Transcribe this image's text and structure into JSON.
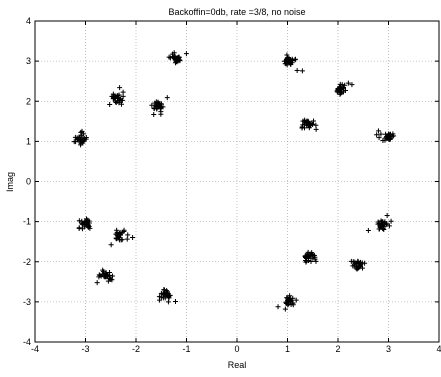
{
  "chart_data": {
    "type": "scatter",
    "title": "Backoffin=0db, rate =3/8, no noise",
    "xlabel": "Real",
    "ylabel": "Imag",
    "xlim": [
      -4,
      4
    ],
    "ylim": [
      -4,
      4
    ],
    "xticks": [
      "-4",
      "-3",
      "-2",
      "-1",
      "0",
      "1",
      "2",
      "3",
      "4"
    ],
    "yticks": [
      "4",
      "3",
      "2",
      "1",
      "0",
      "-1",
      "-2",
      "-3",
      "-4"
    ],
    "grid": true,
    "marker": "+",
    "marker_color": "#000000",
    "grid_style": "dotted",
    "clusters": [
      {
        "x": -1.2,
        "y": 3.05
      },
      {
        "x": -2.38,
        "y": 2.08
      },
      {
        "x": -1.58,
        "y": 1.88
      },
      {
        "x": -3.08,
        "y": 1.05
      },
      {
        "x": -3.0,
        "y": -1.05
      },
      {
        "x": -2.3,
        "y": -1.38
      },
      {
        "x": -2.58,
        "y": -2.35
      },
      {
        "x": -1.42,
        "y": -2.82
      },
      {
        "x": 1.04,
        "y": 3.0
      },
      {
        "x": 2.05,
        "y": 2.3
      },
      {
        "x": 1.38,
        "y": 1.42
      },
      {
        "x": 3.0,
        "y": 1.1
      },
      {
        "x": 2.88,
        "y": -1.08
      },
      {
        "x": 2.4,
        "y": -2.08
      },
      {
        "x": 1.42,
        "y": -1.88
      },
      {
        "x": 1.05,
        "y": -2.98
      }
    ]
  }
}
